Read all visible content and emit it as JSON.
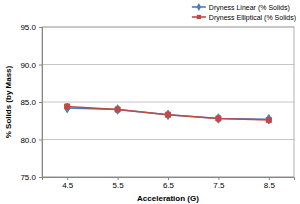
{
  "chart_data": {
    "type": "line",
    "x_label": "Acceleration (G)",
    "y_label": "% Solids (by Mass)",
    "categories": [
      "4.5",
      "5.5",
      "6.5",
      "7.5",
      "8.5"
    ],
    "series": [
      {
        "name": "Dryness Linear (% Solids)",
        "color": "#4a7ebb",
        "marker": "diamond",
        "line_style": "solid",
        "values": [
          84.2,
          84.0,
          83.3,
          82.8,
          82.7
        ]
      },
      {
        "name": "Dryness Elliptical (% Solids)",
        "color": "#be4b48",
        "marker": "square",
        "line_style": "solid",
        "values": [
          84.4,
          84.0,
          83.3,
          82.8,
          82.6
        ]
      }
    ],
    "ylim": [
      75,
      95
    ],
    "yticks": [
      {
        "value": 75,
        "label": "75.0"
      },
      {
        "value": 80,
        "label": "80.0"
      },
      {
        "value": 85,
        "label": "85.0"
      },
      {
        "value": 90,
        "label": "90.0"
      },
      {
        "value": 95,
        "label": "95.0"
      }
    ],
    "grid": true,
    "legend": "top-right"
  }
}
